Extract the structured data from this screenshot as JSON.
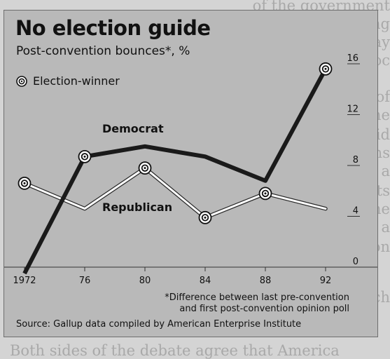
{
  "background_text": [
    "of the government",
    "governing",
    "ed as a way",
    "Soc",
    "The issue of",
    "one of the",
    "He has said",
    "Americans",
    "ings a",
    "Facts",
    "ing the",
    "ng a",
    "on",
    "ch",
    "Both sides of the debate agree that America"
  ],
  "chart_data": {
    "type": "line",
    "title": "No election guide",
    "subtitle": "Post-convention bounces*, %",
    "legend": {
      "marker_label": "Election-winner",
      "placement": "top-left"
    },
    "x": [
      1972,
      1976,
      1980,
      1984,
      1988,
      1992
    ],
    "x_tick_labels": [
      "1972",
      "76",
      "80",
      "84",
      "88",
      "92"
    ],
    "y_ticks": [
      0,
      4,
      8,
      12,
      16
    ],
    "ylim": [
      0,
      16.5
    ],
    "y_axis_position": "right",
    "grid": false,
    "series": [
      {
        "name": "Democrat",
        "values": [
          -0.5,
          8.7,
          9.5,
          8.7,
          6.8,
          15.6
        ],
        "winner": [
          false,
          true,
          false,
          false,
          false,
          true
        ],
        "color": "#1a1a1a"
      },
      {
        "name": "Republican",
        "values": [
          6.6,
          4.6,
          7.8,
          3.9,
          5.8,
          4.6
        ],
        "winner": [
          true,
          false,
          true,
          true,
          true,
          false
        ],
        "color": "#ffffff"
      }
    ],
    "footnote": [
      "*Difference between last pre-convention",
      "and first post-convention opinion poll"
    ],
    "source": "Source: Gallup data compiled by American Enterprise Institute"
  }
}
